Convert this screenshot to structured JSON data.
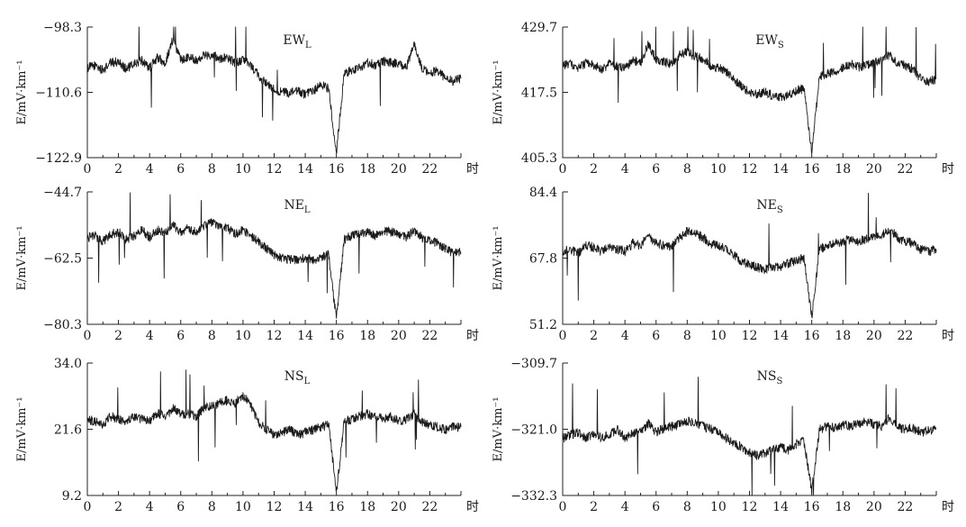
{
  "chart_data": [
    {
      "type": "line",
      "title": "EW",
      "title_sub": "L",
      "ylabel": "E/mV·km⁻¹",
      "xunit": "时",
      "xlim": [
        0,
        24
      ],
      "ylim": [
        -122.9,
        -98.3
      ],
      "yticks": [
        "−98.3",
        "−110.6",
        "−122.9"
      ],
      "xticks": [
        "0",
        "2",
        "4",
        "6",
        "8",
        "10",
        "12",
        "14",
        "16",
        "18",
        "20",
        "22"
      ],
      "x": [
        0,
        0.5,
        1,
        1.5,
        2,
        2.5,
        3,
        3.5,
        4,
        4.5,
        5,
        5.5,
        6,
        6.5,
        7,
        7.5,
        8,
        8.5,
        9,
        9.5,
        10,
        10.5,
        11,
        11.5,
        12,
        12.5,
        13,
        13.5,
        14,
        14.5,
        15,
        15.5,
        16,
        16.5,
        17,
        17.5,
        18,
        18.5,
        19,
        19.5,
        20,
        20.5,
        21,
        21.5,
        22,
        22.5,
        23,
        23.5,
        24
      ],
      "y": [
        -106.0,
        -105.5,
        -106.5,
        -105.0,
        -104.8,
        -106.2,
        -105.3,
        -104.6,
        -106.0,
        -104.0,
        -105.2,
        -100.5,
        -104.5,
        -103.8,
        -104.5,
        -103.6,
        -103.5,
        -104.2,
        -104.0,
        -105.0,
        -104.5,
        -105.5,
        -107.5,
        -109.0,
        -110.0,
        -110.5,
        -110.8,
        -110.3,
        -111.0,
        -110.5,
        -109.0,
        -110.0,
        -122.0,
        -107.0,
        -106.5,
        -106.0,
        -105.0,
        -105.5,
        -104.8,
        -105.0,
        -105.2,
        -106.0,
        -101.5,
        -106.0,
        -107.0,
        -106.5,
        -108.0,
        -108.5,
        -108.0
      ]
    },
    {
      "type": "line",
      "title": "EW",
      "title_sub": "S",
      "ylabel": "E/mV·km⁻¹",
      "xunit": "时",
      "xlim": [
        0,
        24
      ],
      "ylim": [
        405.3,
        429.7
      ],
      "yticks": [
        "429.7",
        "417.5",
        "405.3"
      ],
      "xticks": [
        "0",
        "2",
        "4",
        "6",
        "8",
        "10",
        "12",
        "14",
        "16",
        "18",
        "20",
        "22"
      ],
      "x": [
        0,
        0.5,
        1,
        1.5,
        2,
        2.5,
        3,
        3.5,
        4,
        4.5,
        5,
        5.5,
        6,
        6.5,
        7,
        7.5,
        8,
        8.5,
        9,
        9.5,
        10,
        10.5,
        11,
        11.5,
        12,
        12.5,
        13,
        13.5,
        14,
        14.5,
        15,
        15.5,
        16,
        16.5,
        17,
        17.5,
        18,
        18.5,
        19,
        19.5,
        20,
        20.5,
        21,
        21.5,
        22,
        22.5,
        23,
        23.5,
        24
      ],
      "y": [
        422.5,
        422.8,
        422.0,
        423.0,
        422.6,
        421.8,
        422.8,
        422.3,
        422.0,
        423.5,
        423.0,
        426.5,
        423.5,
        423.2,
        422.8,
        424.5,
        425.0,
        424.2,
        423.8,
        422.5,
        422.0,
        421.5,
        420.0,
        418.5,
        417.5,
        417.2,
        417.6,
        416.8,
        416.5,
        417.0,
        417.8,
        418.2,
        406.5,
        420.5,
        421.0,
        421.5,
        422.0,
        422.8,
        422.2,
        422.5,
        423.0,
        423.5,
        424.5,
        423.0,
        422.5,
        421.8,
        420.0,
        419.5,
        420.0
      ]
    },
    {
      "type": "line",
      "title": "NE",
      "title_sub": "L",
      "ylabel": "E/mV·km⁻¹",
      "xunit": "时",
      "xlim": [
        0,
        24
      ],
      "ylim": [
        -80.3,
        -44.7
      ],
      "yticks": [
        "−44.7",
        "−62.5",
        "−80.3"
      ],
      "xticks": [
        "0",
        "2",
        "4",
        "6",
        "8",
        "10",
        "12",
        "14",
        "16",
        "18",
        "20",
        "22"
      ],
      "x": [
        0,
        0.5,
        1,
        1.5,
        2,
        2.5,
        3,
        3.5,
        4,
        4.5,
        5,
        5.5,
        6,
        6.5,
        7,
        7.5,
        8,
        8.5,
        9,
        9.5,
        10,
        10.5,
        11,
        11.5,
        12,
        12.5,
        13,
        13.5,
        14,
        14.5,
        15,
        15.5,
        16,
        16.5,
        17,
        17.5,
        18,
        18.5,
        19,
        19.5,
        20,
        20.5,
        21,
        21.5,
        22,
        22.5,
        23,
        23.5,
        24
      ],
      "y": [
        -57.0,
        -56.5,
        -58.0,
        -56.0,
        -55.5,
        -57.5,
        -56.5,
        -55.0,
        -57.0,
        -55.0,
        -56.0,
        -53.5,
        -55.5,
        -54.5,
        -55.5,
        -54.0,
        -53.0,
        -54.0,
        -54.5,
        -56.0,
        -55.0,
        -56.5,
        -58.0,
        -60.0,
        -61.5,
        -62.5,
        -63.0,
        -62.8,
        -62.5,
        -63.0,
        -62.5,
        -61.5,
        -79.0,
        -57.5,
        -56.5,
        -56.0,
        -55.5,
        -56.5,
        -55.0,
        -55.5,
        -56.0,
        -57.0,
        -55.0,
        -57.0,
        -58.0,
        -58.5,
        -60.0,
        -61.0,
        -61.0
      ]
    },
    {
      "type": "line",
      "title": "NE",
      "title_sub": "S",
      "ylabel": "E/mV·km⁻¹",
      "xunit": "时",
      "xlim": [
        0,
        24
      ],
      "ylim": [
        51.2,
        84.4
      ],
      "yticks": [
        "84.4",
        "67.8",
        "51.2"
      ],
      "xticks": [
        "0",
        "2",
        "4",
        "6",
        "8",
        "10",
        "12",
        "14",
        "16",
        "18",
        "20",
        "22"
      ],
      "x": [
        0,
        0.5,
        1,
        1.5,
        2,
        2.5,
        3,
        3.5,
        4,
        4.5,
        5,
        5.5,
        6,
        6.5,
        7,
        7.5,
        8,
        8.5,
        9,
        9.5,
        10,
        10.5,
        11,
        11.5,
        12,
        12.5,
        13,
        13.5,
        14,
        14.5,
        15,
        15.5,
        16,
        16.5,
        17,
        17.5,
        18,
        18.5,
        19,
        19.5,
        20,
        20.5,
        21,
        21.5,
        22,
        22.5,
        23,
        23.5,
        24
      ],
      "y": [
        69.5,
        70.0,
        69.0,
        71.0,
        70.5,
        69.5,
        70.5,
        70.0,
        69.5,
        71.5,
        71.0,
        73.5,
        71.5,
        71.0,
        70.5,
        73.0,
        74.5,
        74.0,
        73.0,
        71.5,
        71.0,
        70.0,
        68.5,
        67.0,
        66.0,
        65.5,
        65.0,
        65.5,
        65.8,
        66.5,
        67.0,
        68.0,
        53.0,
        70.0,
        71.0,
        71.5,
        72.0,
        72.5,
        72.0,
        72.5,
        73.0,
        73.5,
        75.0,
        73.0,
        72.0,
        71.5,
        70.0,
        69.5,
        70.0
      ]
    },
    {
      "type": "line",
      "title": "NS",
      "title_sub": "L",
      "ylabel": "E/mV·km⁻¹",
      "xunit": "时",
      "xlim": [
        0,
        24
      ],
      "ylim": [
        9.2,
        34.0
      ],
      "yticks": [
        "34.0",
        "21.6",
        "9.2"
      ],
      "xticks": [
        "0",
        "2",
        "4",
        "6",
        "8",
        "10",
        "12",
        "14",
        "16",
        "18",
        "20",
        "22"
      ],
      "x": [
        0,
        0.5,
        1,
        1.5,
        2,
        2.5,
        3,
        3.5,
        4,
        4.5,
        5,
        5.5,
        6,
        6.5,
        7,
        7.5,
        8,
        8.5,
        9,
        9.5,
        10,
        10.5,
        11,
        11.5,
        12,
        12.5,
        13,
        13.5,
        14,
        14.5,
        15,
        15.5,
        16,
        16.5,
        17,
        17.5,
        18,
        18.5,
        19,
        19.5,
        20,
        20.5,
        21,
        21.5,
        22,
        22.5,
        23,
        23.5,
        24
      ],
      "y": [
        23.5,
        23.0,
        22.5,
        24.0,
        23.5,
        23.0,
        24.0,
        23.5,
        23.0,
        24.5,
        24.0,
        25.5,
        24.5,
        24.5,
        24.0,
        25.5,
        26.0,
        26.5,
        27.0,
        26.5,
        28.0,
        26.0,
        23.0,
        21.5,
        20.5,
        21.0,
        21.5,
        20.5,
        21.0,
        21.5,
        22.0,
        22.5,
        9.8,
        23.0,
        23.5,
        24.0,
        24.5,
        24.0,
        23.5,
        24.0,
        23.0,
        23.5,
        24.5,
        23.0,
        22.5,
        22.0,
        21.5,
        22.0,
        22.0
      ]
    },
    {
      "type": "line",
      "title": "NS",
      "title_sub": "S",
      "ylabel": "E/mV·km⁻¹",
      "xunit": "时",
      "xlim": [
        0,
        24
      ],
      "ylim": [
        -332.3,
        -309.7
      ],
      "yticks": [
        "−309.7",
        "−321.0",
        "−332.3"
      ],
      "xticks": [
        "0",
        "2",
        "4",
        "6",
        "8",
        "10",
        "12",
        "14",
        "16",
        "18",
        "20",
        "22"
      ],
      "x": [
        0,
        0.5,
        1,
        1.5,
        2,
        2.5,
        3,
        3.5,
        4,
        4.5,
        5,
        5.5,
        6,
        6.5,
        7,
        7.5,
        8,
        8.5,
        9,
        9.5,
        10,
        10.5,
        11,
        11.5,
        12,
        12.5,
        13,
        13.5,
        14,
        14.5,
        15,
        15.5,
        16,
        16.5,
        17,
        17.5,
        18,
        18.5,
        19,
        19.5,
        20,
        20.5,
        21,
        21.5,
        22,
        22.5,
        23,
        23.5,
        24
      ],
      "y": [
        -322.5,
        -322.0,
        -321.5,
        -322.5,
        -321.8,
        -322.5,
        -322.0,
        -321.0,
        -322.5,
        -321.8,
        -321.5,
        -320.0,
        -321.5,
        -320.8,
        -320.5,
        -320.2,
        -319.5,
        -320.0,
        -320.5,
        -321.0,
        -321.5,
        -322.5,
        -323.5,
        -324.0,
        -325.0,
        -325.5,
        -325.0,
        -324.5,
        -324.0,
        -324.5,
        -323.5,
        -323.0,
        -331.5,
        -321.0,
        -320.5,
        -320.8,
        -320.2,
        -320.5,
        -320.0,
        -319.8,
        -320.2,
        -320.5,
        -319.0,
        -320.5,
        -321.0,
        -320.8,
        -321.5,
        -321.2,
        -321.0
      ]
    }
  ]
}
